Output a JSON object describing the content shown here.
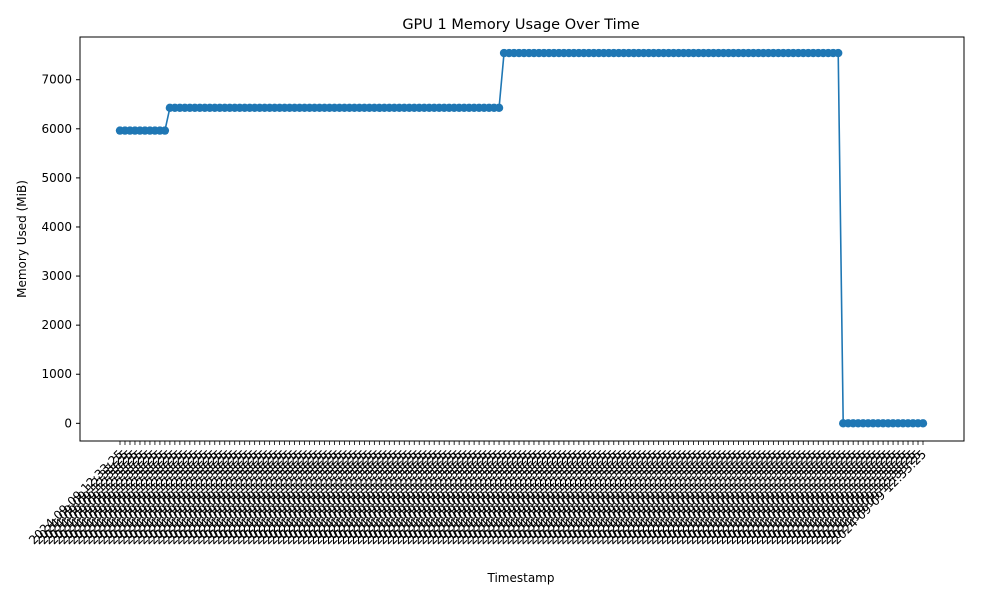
{
  "chart_data": {
    "type": "line",
    "title": "GPU 1 Memory Usage Over Time",
    "xlabel": "Timestamp",
    "ylabel": "Memory Used (MiB)",
    "ylim": [
      -360,
      7870
    ],
    "yticks": [
      0,
      1000,
      2000,
      3000,
      4000,
      5000,
      6000,
      7000
    ],
    "grid": false,
    "legend": "none",
    "color": "#1f77b4",
    "x_tick_rotation_deg": 45,
    "x_tick_labels_legible": false,
    "x_tick_label_sample": "2024-09-09 12:33:25",
    "segments": [
      {
        "count": 10,
        "value": 5963
      },
      {
        "count": 67,
        "value": 6427
      },
      {
        "count": 68,
        "value": 7543
      },
      {
        "count": 17,
        "value": 0
      }
    ]
  }
}
